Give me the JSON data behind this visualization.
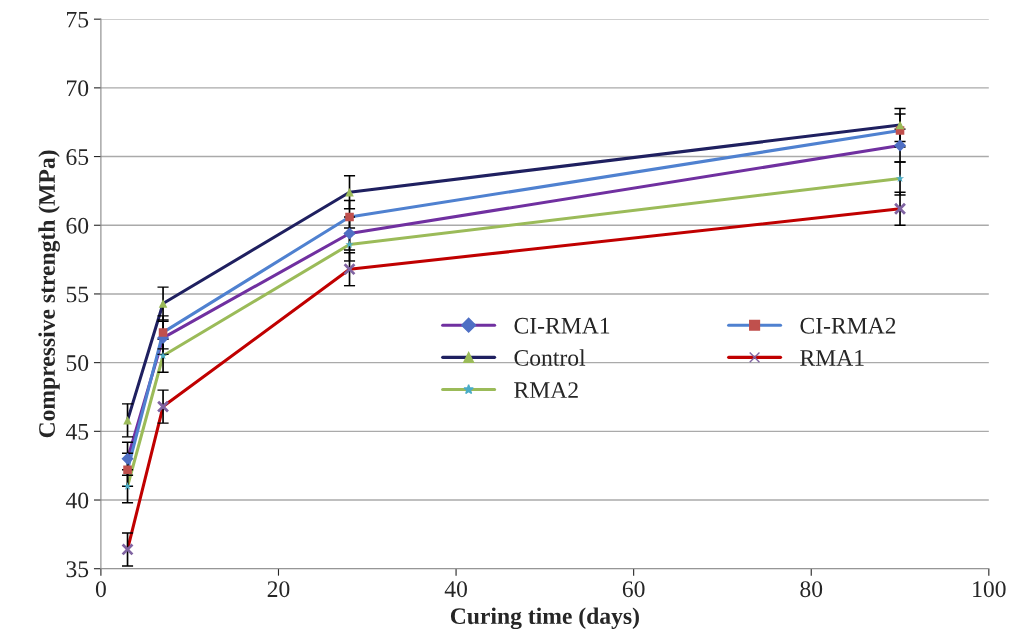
{
  "chart_data": {
    "type": "line",
    "xlabel": "Curing time (days)",
    "ylabel": "Compressive strength (MPa)",
    "x": [
      3,
      7,
      28,
      90
    ],
    "series": [
      {
        "name": "CI-RMA1",
        "color": "#7030a0",
        "colors": [
          "#4f6fc4",
          "#4f6fc4",
          "#4f6fc4",
          "#4f6fc4"
        ],
        "marker": "diamond",
        "values": [
          43.0,
          51.8,
          59.4,
          65.8
        ],
        "errors": [
          1.2,
          1.2,
          1.2,
          1.2
        ]
      },
      {
        "name": "CI-RMA2",
        "color": "#4f81d0",
        "colors": [
          "#c0504d",
          "#c0504d",
          "#c0504d",
          "#c0504d"
        ],
        "marker": "square",
        "values": [
          42.2,
          52.2,
          60.6,
          66.9
        ],
        "errors": [
          1.2,
          1.2,
          1.2,
          1.2
        ]
      },
      {
        "name": "Control",
        "color": "#1f2060",
        "colors": [
          "#9bbb59",
          "#9bbb59",
          "#9bbb59",
          "#9bbb59"
        ],
        "marker": "triangle",
        "values": [
          45.8,
          54.3,
          62.4,
          67.3
        ],
        "errors": [
          1.2,
          1.2,
          1.2,
          1.2
        ]
      },
      {
        "name": "RMA1",
        "color": "#c00000",
        "colors": [
          "#8064a2",
          "#8064a2",
          "#8064a2",
          "#8064a2"
        ],
        "marker": "cross",
        "values": [
          36.4,
          46.8,
          56.8,
          61.2
        ],
        "errors": [
          1.2,
          1.2,
          1.2,
          1.2
        ]
      },
      {
        "name": "RMA2",
        "color": "#9bbb59",
        "colors": [
          "#4bacc6",
          "#4bacc6",
          "#4bacc6",
          "#4bacc6"
        ],
        "marker": "star",
        "values": [
          41.0,
          50.5,
          58.6,
          63.4
        ],
        "errors": [
          1.2,
          1.2,
          1.2,
          1.2
        ]
      }
    ],
    "xlim": [
      0,
      100
    ],
    "xticks": [
      0,
      20,
      40,
      60,
      80,
      100
    ],
    "ylim": [
      35,
      75
    ],
    "yticks": [
      35,
      40,
      45,
      50,
      55,
      60,
      65,
      70,
      75
    ],
    "grid": "y",
    "legend": "right"
  }
}
